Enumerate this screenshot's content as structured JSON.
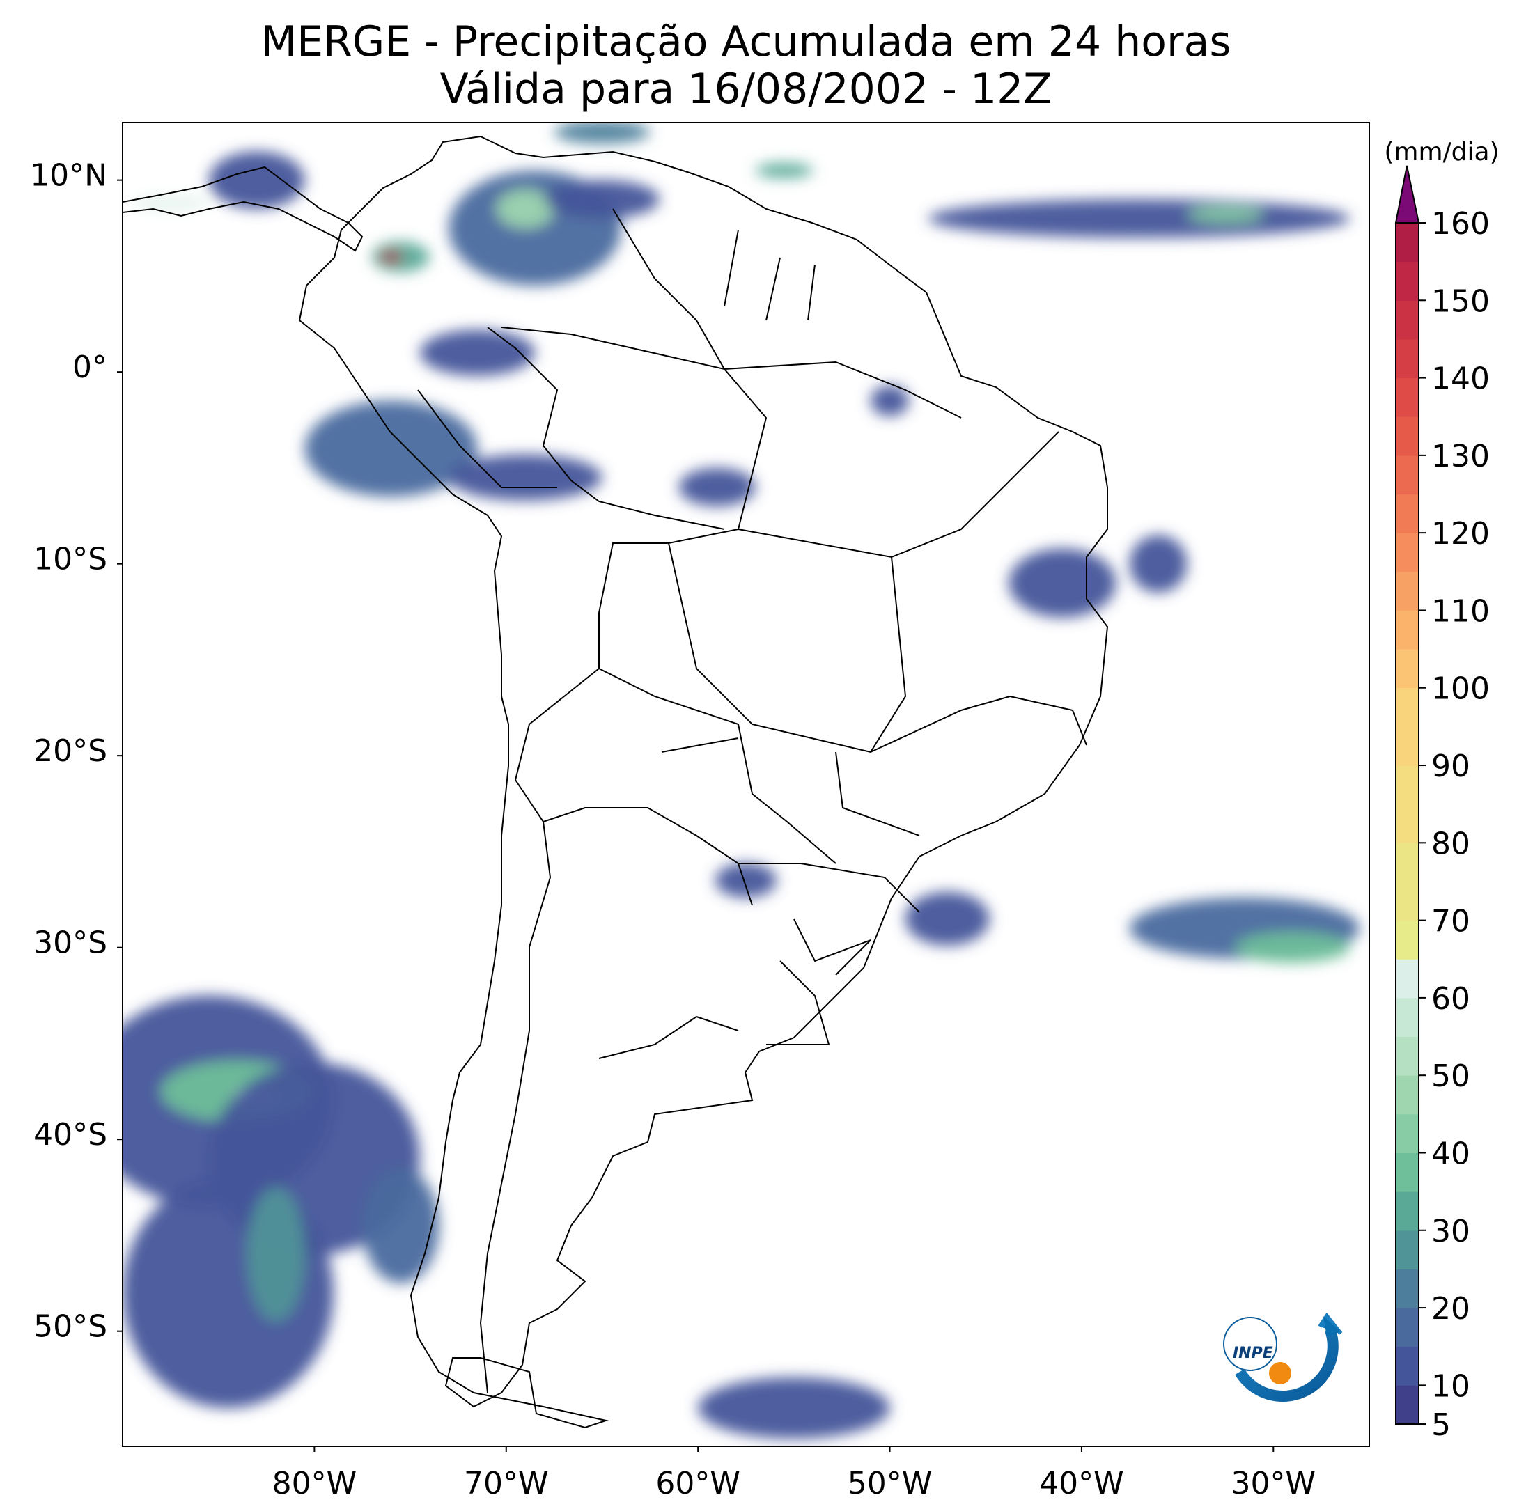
{
  "title": {
    "line1": "MERGE - Precipitação Acumulada em 24 horas",
    "line2": "Válida para 16/08/2002 - 12Z"
  },
  "map": {
    "lon_range": [
      -90,
      -25
    ],
    "lat_range": [
      -56,
      13
    ],
    "lat_ticks": [
      {
        "value": 10,
        "label": "10°N"
      },
      {
        "value": 0,
        "label": "0°"
      },
      {
        "value": -10,
        "label": "10°S"
      },
      {
        "value": -20,
        "label": "20°S"
      },
      {
        "value": -30,
        "label": "30°S"
      },
      {
        "value": -40,
        "label": "40°S"
      },
      {
        "value": -50,
        "label": "50°S"
      }
    ],
    "lon_ticks": [
      {
        "value": -80,
        "label": "80°W"
      },
      {
        "value": -70,
        "label": "70°W"
      },
      {
        "value": -60,
        "label": "60°W"
      },
      {
        "value": -50,
        "label": "50°W"
      },
      {
        "value": -40,
        "label": "40°W"
      },
      {
        "value": -30,
        "label": "30°W"
      }
    ],
    "logo_text": "INPE"
  },
  "colorbar": {
    "unit": "(mm/dia)",
    "min": 5,
    "max": 160,
    "extend": "max",
    "labels": [
      5,
      10,
      20,
      30,
      40,
      50,
      60,
      70,
      80,
      90,
      100,
      110,
      120,
      130,
      140,
      150,
      160
    ],
    "levels": [
      {
        "from": 5,
        "color": "#3f3f8a"
      },
      {
        "from": 10,
        "color": "#45559a"
      },
      {
        "from": 15,
        "color": "#4a6a9e"
      },
      {
        "from": 20,
        "color": "#4d7f9c"
      },
      {
        "from": 25,
        "color": "#509498"
      },
      {
        "from": 30,
        "color": "#5aa997"
      },
      {
        "from": 35,
        "color": "#6fbf9a"
      },
      {
        "from": 40,
        "color": "#87cca4"
      },
      {
        "from": 45,
        "color": "#9fd6b0"
      },
      {
        "from": 50,
        "color": "#b5e0c1"
      },
      {
        "from": 55,
        "color": "#c8e8d6"
      },
      {
        "from": 60,
        "color": "#dcefe8"
      },
      {
        "from": 65,
        "color": "#e8eb8a"
      },
      {
        "from": 70,
        "color": "#ece586"
      },
      {
        "from": 80,
        "color": "#f3dd80"
      },
      {
        "from": 90,
        "color": "#f9d47c"
      },
      {
        "from": 100,
        "color": "#fbc474"
      },
      {
        "from": 105,
        "color": "#fbb36c"
      },
      {
        "from": 110,
        "color": "#f8a164"
      },
      {
        "from": 115,
        "color": "#f58e5c"
      },
      {
        "from": 120,
        "color": "#f17b55"
      },
      {
        "from": 125,
        "color": "#ec6a4f"
      },
      {
        "from": 130,
        "color": "#e65a4a"
      },
      {
        "from": 135,
        "color": "#df4b47"
      },
      {
        "from": 140,
        "color": "#d63e45"
      },
      {
        "from": 145,
        "color": "#cb3244"
      },
      {
        "from": 150,
        "color": "#bf2744"
      },
      {
        "from": 155,
        "color": "#b01d45"
      }
    ],
    "extend_color": "#7b0a77"
  },
  "precip_areas": [
    {
      "lon": -85.5,
      "lat": -38.0,
      "rx": 6.5,
      "ry": 5.5,
      "mm": 12
    },
    {
      "lon": -84.0,
      "lat": -37.5,
      "rx": 4.0,
      "ry": 1.6,
      "mm": 35
    },
    {
      "lon": -83.0,
      "lat": -37.8,
      "rx": 1.2,
      "ry": 0.6,
      "mm": 60
    },
    {
      "lon": -80.0,
      "lat": -41.0,
      "rx": 5.5,
      "ry": 5.0,
      "mm": 12
    },
    {
      "lon": -84.5,
      "lat": -48.0,
      "rx": 5.5,
      "ry": 6.0,
      "mm": 10
    },
    {
      "lon": -82.0,
      "lat": -46.0,
      "rx": 1.5,
      "ry": 3.5,
      "mm": 25
    },
    {
      "lon": -75.5,
      "lat": -44.5,
      "rx": 2.0,
      "ry": 3.0,
      "mm": 15
    },
    {
      "lon": -55.0,
      "lat": -54.0,
      "rx": 5.0,
      "ry": 1.6,
      "mm": 10
    },
    {
      "lon": -31.5,
      "lat": -29.0,
      "rx": 6.0,
      "ry": 1.6,
      "mm": 15
    },
    {
      "lon": -29.0,
      "lat": -30.0,
      "rx": 3.0,
      "ry": 0.8,
      "mm": 35
    },
    {
      "lon": -47.0,
      "lat": -28.5,
      "rx": 2.2,
      "ry": 1.4,
      "mm": 12
    },
    {
      "lon": -57.5,
      "lat": -26.5,
      "rx": 1.6,
      "ry": 0.9,
      "mm": 12
    },
    {
      "lon": -41.0,
      "lat": -11.0,
      "rx": 2.8,
      "ry": 1.8,
      "mm": 10
    },
    {
      "lon": -36.0,
      "lat": -10.0,
      "rx": 1.5,
      "ry": 1.5,
      "mm": 10
    },
    {
      "lon": -76.0,
      "lat": -4.0,
      "rx": 4.5,
      "ry": 2.5,
      "mm": 15
    },
    {
      "lon": -69.0,
      "lat": -5.5,
      "rx": 4.0,
      "ry": 1.2,
      "mm": 12
    },
    {
      "lon": -71.5,
      "lat": 1.0,
      "rx": 3.0,
      "ry": 1.2,
      "mm": 12
    },
    {
      "lon": -59.0,
      "lat": -6.0,
      "rx": 2.0,
      "ry": 1.0,
      "mm": 10
    },
    {
      "lon": -50.0,
      "lat": -1.5,
      "rx": 1.0,
      "ry": 0.8,
      "mm": 10
    },
    {
      "lon": -68.5,
      "lat": 7.5,
      "rx": 4.5,
      "ry": 3.0,
      "mm": 15
    },
    {
      "lon": -69.0,
      "lat": 8.5,
      "rx": 1.5,
      "ry": 1.0,
      "mm": 45
    },
    {
      "lon": -65.0,
      "lat": 9.0,
      "rx": 3.0,
      "ry": 1.0,
      "mm": 12
    },
    {
      "lon": -75.5,
      "lat": 6.0,
      "rx": 1.5,
      "ry": 0.8,
      "mm": 30
    },
    {
      "lon": -76.0,
      "lat": 6.0,
      "rx": 0.6,
      "ry": 0.3,
      "mm": 160
    },
    {
      "lon": -83.0,
      "lat": 10.0,
      "rx": 2.5,
      "ry": 1.5,
      "mm": 12
    },
    {
      "lon": -87.5,
      "lat": 8.8,
      "rx": 2.0,
      "ry": 0.3,
      "mm": 60
    },
    {
      "lon": -37.0,
      "lat": 8.0,
      "rx": 11.0,
      "ry": 1.0,
      "mm": 12
    },
    {
      "lon": -32.5,
      "lat": 8.2,
      "rx": 2.0,
      "ry": 0.4,
      "mm": 40
    },
    {
      "lon": -55.5,
      "lat": 10.5,
      "rx": 1.5,
      "ry": 0.4,
      "mm": 30
    },
    {
      "lon": -65.0,
      "lat": 12.5,
      "rx": 2.5,
      "ry": 0.6,
      "mm": 20
    }
  ]
}
